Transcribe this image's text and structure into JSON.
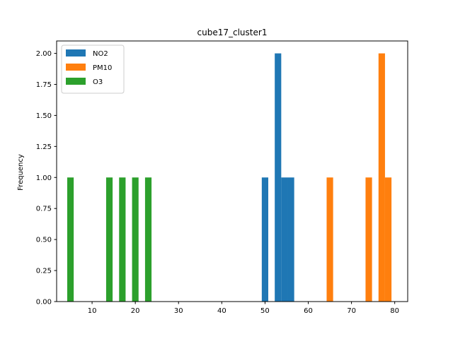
{
  "chart_data": {
    "type": "bar",
    "title": "cube17_cluster1",
    "xlabel": "",
    "ylabel": "Frequency",
    "xlim": [
      1.8,
      83.0
    ],
    "ylim": [
      0,
      2.1
    ],
    "xticks": [
      10,
      20,
      30,
      40,
      50,
      60,
      70,
      80
    ],
    "yticks": [
      0.0,
      0.25,
      0.5,
      0.75,
      1.0,
      1.25,
      1.5,
      1.75,
      2.0
    ],
    "ytick_labels": [
      "0.00",
      "0.25",
      "0.50",
      "0.75",
      "1.00",
      "1.25",
      "1.50",
      "1.75",
      "2.00"
    ],
    "grid": false,
    "legend_position": "top-left",
    "bar_width": 1.5,
    "series": [
      {
        "name": "NO2",
        "color": "#1f77b4",
        "bars": [
          {
            "x": 49.25,
            "value": 1
          },
          {
            "x": 52.25,
            "value": 2
          },
          {
            "x": 53.75,
            "value": 1
          },
          {
            "x": 55.25,
            "value": 1
          }
        ]
      },
      {
        "name": "PM10",
        "color": "#ff7f0e",
        "bars": [
          {
            "x": 64.25,
            "value": 1
          },
          {
            "x": 73.25,
            "value": 1
          },
          {
            "x": 76.25,
            "value": 2
          },
          {
            "x": 77.75,
            "value": 1
          }
        ]
      },
      {
        "name": "O3",
        "color": "#2ca02c",
        "bars": [
          {
            "x": 4.25,
            "value": 1
          },
          {
            "x": 13.25,
            "value": 1
          },
          {
            "x": 16.25,
            "value": 1
          },
          {
            "x": 19.25,
            "value": 1
          },
          {
            "x": 22.25,
            "value": 1
          }
        ]
      }
    ]
  }
}
